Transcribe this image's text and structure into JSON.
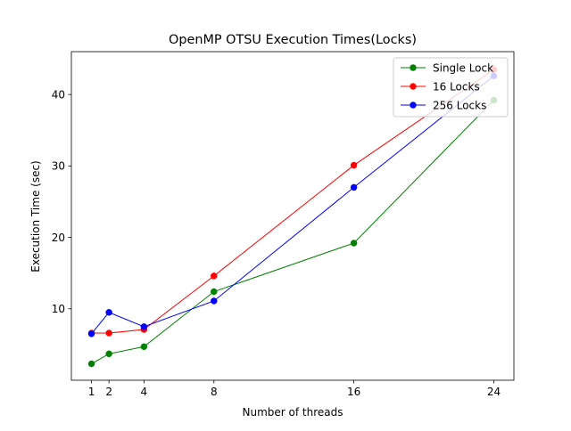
{
  "chart_data": {
    "type": "line",
    "title": "OpenMP OTSU Execution Times(Locks)",
    "xlabel": "Number of threads",
    "ylabel": "Execution Time (sec)",
    "x": [
      1,
      2,
      4,
      8,
      16,
      24
    ],
    "xticks": [
      "1",
      "2",
      "4",
      "8",
      "16",
      "24"
    ],
    "yticks": [
      "10",
      "20",
      "30",
      "40"
    ],
    "xlim": [
      -0.15,
      25.15
    ],
    "ylim": [
      0.0,
      46.0
    ],
    "grid": false,
    "legend_position": "top-right",
    "series": [
      {
        "name": "Single Lock",
        "color": "#008000",
        "values": [
          2.3,
          3.7,
          4.7,
          12.4,
          19.2,
          39.2
        ]
      },
      {
        "name": "16 Locks",
        "color": "#ff0000",
        "values": [
          6.6,
          6.6,
          7.1,
          14.6,
          30.1,
          43.5
        ]
      },
      {
        "name": "256 Locks",
        "color": "#0000ff",
        "values": [
          6.5,
          9.5,
          7.5,
          11.1,
          27.0,
          42.6
        ]
      }
    ]
  }
}
